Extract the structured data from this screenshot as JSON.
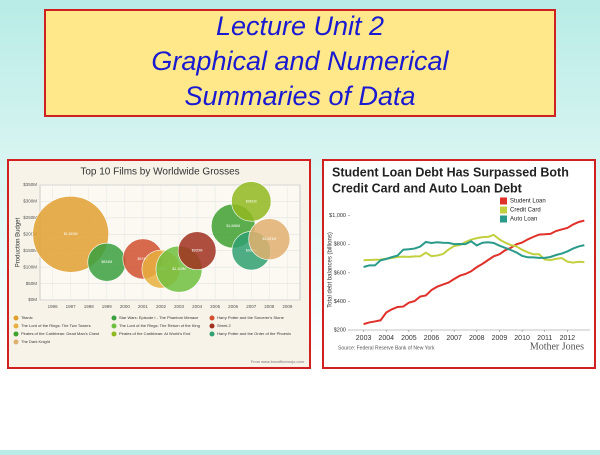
{
  "title": [
    "Lecture Unit 2",
    "Graphical and Numerical",
    "Summaries of Data"
  ],
  "chart_data": [
    {
      "type": "bubble",
      "title": "Top 10 Films by Worldwide Grosses",
      "y_label": "Production Budget",
      "xlim": [
        1995.3,
        2009.7
      ],
      "xticks": [
        1996,
        1997,
        1998,
        1999,
        2000,
        2001,
        2002,
        2003,
        2004,
        2005,
        2006,
        2007,
        2008,
        2009
      ],
      "ylim": [
        0,
        350
      ],
      "yticks": [
        {
          "value": 0,
          "label": "$0M"
        },
        {
          "value": 50,
          "label": "$50M"
        },
        {
          "value": 100,
          "label": "$100M"
        },
        {
          "value": 150,
          "label": "$150M"
        },
        {
          "value": 200,
          "label": "$200M"
        },
        {
          "value": 250,
          "label": "$250M"
        },
        {
          "value": 300,
          "label": "$300M"
        },
        {
          "value": 350,
          "label": "$350M"
        }
      ],
      "grid": true,
      "series": [
        {
          "name": "Titanic",
          "color": "#e0a030",
          "x": [
            1997
          ],
          "values": [
            200
          ],
          "sizes": [
            1843
          ],
          "value_labels": [
            "$1,843M"
          ]
        },
        {
          "name": "Star Wars: Episode I - The Phantom Menace",
          "color": "#3aa040",
          "x": [
            1999
          ],
          "values": [
            115
          ],
          "sizes": [
            924
          ],
          "value_labels": [
            "$924M"
          ]
        },
        {
          "name": "Harry Potter and the Sorcerer's Stone",
          "color": "#d05030",
          "x": [
            2001
          ],
          "values": [
            125
          ],
          "sizes": [
            974
          ],
          "value_labels": [
            "$974M"
          ]
        },
        {
          "name": "The Lord of the Rings: The Two Towers",
          "color": "#e8b040",
          "x": [
            2002
          ],
          "values": [
            94
          ],
          "sizes": [
            926
          ],
          "value_labels": [
            "$926M"
          ]
        },
        {
          "name": "The Lord of the Rings: The Return of the King",
          "color": "#70c040",
          "x": [
            2003
          ],
          "values": [
            94
          ],
          "sizes": [
            1119
          ],
          "value_labels": [
            "$1,119M"
          ]
        },
        {
          "name": "Shrek 2",
          "color": "#a03020",
          "x": [
            2004
          ],
          "values": [
            150
          ],
          "sizes": [
            920
          ],
          "value_labels": [
            "$920M"
          ]
        },
        {
          "name": "Pirates of the Caribbean: Dead Man's Chest",
          "color": "#40a030",
          "x": [
            2006
          ],
          "values": [
            225
          ],
          "sizes": [
            1066
          ],
          "value_labels": [
            "$1,066M"
          ]
        },
        {
          "name": "Pirates of the Caribbean: At World's End",
          "color": "#90b820",
          "x": [
            2007
          ],
          "values": [
            300
          ],
          "sizes": [
            961
          ],
          "value_labels": [
            "$961M"
          ]
        },
        {
          "name": "Harry Potter and the Order of the Phoenix",
          "color": "#30a070",
          "x": [
            2007
          ],
          "values": [
            150
          ],
          "sizes": [
            938
          ],
          "value_labels": [
            "$938M"
          ]
        },
        {
          "name": "The Dark Knight",
          "color": "#e0b070",
          "x": [
            2008
          ],
          "values": [
            185
          ],
          "sizes": [
            1001
          ],
          "value_labels": [
            "$1,001M"
          ]
        }
      ],
      "source": "From www.boxofficemojo.com"
    },
    {
      "type": "line",
      "title": [
        "Student Loan Debt Has Surpassed Both",
        "Credit Card and Auto Loan Debt"
      ],
      "y_label": "Total debt balances (billions)",
      "x": [
        2003,
        2003.25,
        2003.5,
        2003.75,
        2004,
        2004.25,
        2004.5,
        2004.75,
        2005,
        2005.25,
        2005.5,
        2005.75,
        2006,
        2006.25,
        2006.5,
        2006.75,
        2007,
        2007.25,
        2007.5,
        2007.75,
        2008,
        2008.25,
        2008.5,
        2008.75,
        2009,
        2009.25,
        2009.5,
        2009.75,
        2010,
        2010.25,
        2010.5,
        2010.75,
        2011,
        2011.25,
        2011.5,
        2011.75,
        2012,
        2012.25,
        2012.5,
        2012.75
      ],
      "xlim": [
        2002.4,
        2013.0
      ],
      "xticks": [
        2003,
        2004,
        2005,
        2006,
        2007,
        2008,
        2009,
        2010,
        2011,
        2012
      ],
      "ylim": [
        200,
        1040
      ],
      "yticks": [
        {
          "value": 200,
          "label": "$200"
        },
        {
          "value": 400,
          "label": "$400"
        },
        {
          "value": 600,
          "label": "$600"
        },
        {
          "value": 800,
          "label": "$800"
        },
        {
          "value": 1000,
          "label": "$1,000"
        }
      ],
      "series": [
        {
          "name": "Student Loan",
          "color": "#e0302a",
          "values": [
            241,
            253,
            260,
            268,
            322,
            345,
            361,
            364,
            391,
            402,
            434,
            442,
            480,
            503,
            518,
            532,
            557,
            580,
            592,
            611,
            640,
            663,
            690,
            716,
            730,
            758,
            775,
            800,
            812,
            834,
            852,
            868,
            870,
            873,
            893,
            904,
            914,
            938,
            956,
            966
          ]
        },
        {
          "name": "Credit Card",
          "color": "#c2d040",
          "values": [
            688,
            690,
            692,
            693,
            700,
            704,
            711,
            714,
            712,
            715,
            716,
            741,
            717,
            721,
            731,
            763,
            788,
            795,
            816,
            832,
            843,
            850,
            852,
            866,
            834,
            812,
            795,
            785,
            762,
            744,
            730,
            730,
            694,
            689,
            698,
            704,
            679,
            672,
            678,
            675
          ]
        },
        {
          "name": "Auto Loan",
          "color": "#2a9a8a",
          "values": [
            641,
            652,
            652,
            688,
            697,
            710,
            721,
            762,
            765,
            770,
            784,
            816,
            809,
            814,
            811,
            810,
            801,
            802,
            801,
            821,
            792,
            811,
            814,
            809,
            790,
            775,
            760,
            743,
            719,
            709,
            708,
            705,
            705,
            711,
            725,
            735,
            750,
            770,
            785,
            794
          ]
        }
      ],
      "source": "Source: Federal Reserve Bank of New York",
      "brand": "Mother Jones"
    }
  ]
}
